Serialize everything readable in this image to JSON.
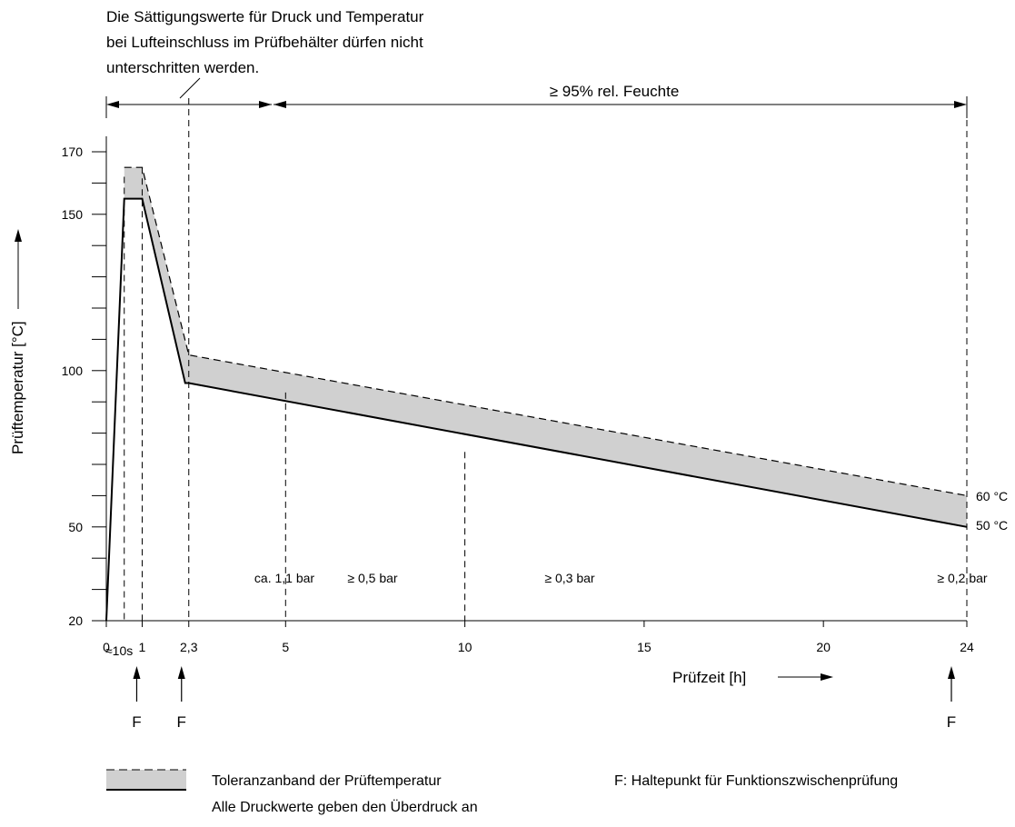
{
  "chart_data": {
    "type": "area",
    "top_note": [
      "Die Sättigungswerte für Druck und Temperatur",
      "bei Lufteinschluss im Prüfbehälter dürfen nicht",
      "unterschritten werden."
    ],
    "humidity_label": "≥ 95% rel. Feuchte",
    "ylabel": "Prüftemperatur [°C]",
    "xlabel": "Prüfzeit [h]",
    "y_ticks": [
      "20",
      "50",
      "100",
      "150",
      "170"
    ],
    "x_ticks": [
      "0",
      "1",
      "2,3",
      "5",
      "10",
      "15",
      "20",
      "24"
    ],
    "x_note_10s": "≈10s",
    "pressure_labels": [
      "ca. 1,1 bar",
      "≥ 0,5 bar",
      "≥ 0,3 bar",
      "≥ 0,2 bar"
    ],
    "end_labels": [
      "60 °C",
      "50 °C"
    ],
    "f_label": "F",
    "series": [
      {
        "x": [
          0,
          0.5,
          1.0,
          2.2,
          2.3,
          24
        ],
        "y": [
          20,
          155,
          155,
          96,
          96,
          50
        ]
      },
      {
        "x": [
          0.5,
          1.0,
          2.3,
          24
        ],
        "y": [
          165,
          165,
          105,
          60
        ]
      }
    ],
    "f_points": [
      1.0,
      2.3,
      24
    ],
    "legend": {
      "band_label": "Toleranzanband der Prüftemperatur",
      "pressure_note": "Alle Druckwerte geben den Überdruck an",
      "f_note": "F: Haltepunkt für Funktionszwischenprüfung"
    },
    "colors": {
      "band": "#d0d0d0",
      "line": "#000000"
    }
  }
}
